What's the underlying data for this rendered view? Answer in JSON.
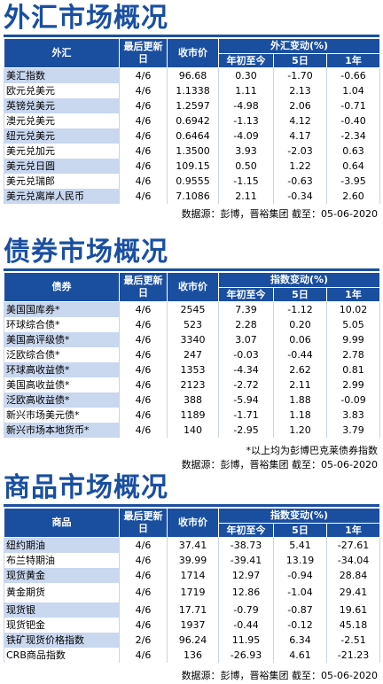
{
  "fx": {
    "title": "外汇市场概况",
    "headers": {
      "name": "外汇",
      "date": "最后更新日",
      "close": "收市价",
      "change_group": "外汇变动(%)",
      "ytd": "年初至今",
      "d5": "5日",
      "y1": "1年"
    },
    "rows": [
      {
        "name": "美汇指数",
        "date": "4/6",
        "close": "96.68",
        "ytd": "0.30",
        "d5": "-1.70",
        "y1": "-0.66"
      },
      {
        "name": "欧元兑美元",
        "date": "4/6",
        "close": "1.1338",
        "ytd": "1.11",
        "d5": "2.13",
        "y1": "1.04"
      },
      {
        "name": "英镑兑美元",
        "date": "4/6",
        "close": "1.2597",
        "ytd": "-4.98",
        "d5": "2.06",
        "y1": "-0.71"
      },
      {
        "name": "澳元兑美元",
        "date": "4/6",
        "close": "0.6942",
        "ytd": "-1.13",
        "d5": "4.12",
        "y1": "-0.40"
      },
      {
        "name": "纽元兑美元",
        "date": "4/6",
        "close": "0.6464",
        "ytd": "-4.09",
        "d5": "4.17",
        "y1": "-2.34"
      },
      {
        "name": "美元兑加元",
        "date": "4/6",
        "close": "1.3500",
        "ytd": "3.93",
        "d5": "-2.03",
        "y1": "0.63"
      },
      {
        "name": "美元兑日圆",
        "date": "4/6",
        "close": "109.15",
        "ytd": "0.50",
        "d5": "1.22",
        "y1": "0.64"
      },
      {
        "name": "美元兑瑞郎",
        "date": "4/6",
        "close": "0.9555",
        "ytd": "-1.15",
        "d5": "-0.63",
        "y1": "-3.95"
      },
      {
        "name": "美元兑离岸人民币",
        "date": "4/6",
        "close": "7.1086",
        "ytd": "2.11",
        "d5": "-0.34",
        "y1": "2.60"
      }
    ],
    "source": "数据源：彭博，晋裕集团 截至：05-06-2020"
  },
  "bond": {
    "title": "债券市场概况",
    "headers": {
      "name": "债券",
      "date": "最后更新日",
      "close": "收市价",
      "change_group": "指数变动(%)",
      "ytd": "年初至今",
      "d5": "5日",
      "y1": "1年"
    },
    "rows": [
      {
        "name": "美国国库券*",
        "date": "4/6",
        "close": "2545",
        "ytd": "7.39",
        "d5": "-1.12",
        "y1": "10.02"
      },
      {
        "name": "环球综合债*",
        "date": "4/6",
        "close": "523",
        "ytd": "2.28",
        "d5": "0.20",
        "y1": "5.05"
      },
      {
        "name": "美国高评级债*",
        "date": "4/6",
        "close": "3340",
        "ytd": "3.07",
        "d5": "0.06",
        "y1": "9.99"
      },
      {
        "name": "泛欧综合债*",
        "date": "4/6",
        "close": "247",
        "ytd": "-0.03",
        "d5": "-0.44",
        "y1": "2.78"
      },
      {
        "name": "环球高收益债*",
        "date": "4/6",
        "close": "1353",
        "ytd": "-4.34",
        "d5": "2.62",
        "y1": "0.81"
      },
      {
        "name": "美国高收益债*",
        "date": "4/6",
        "close": "2123",
        "ytd": "-2.72",
        "d5": "2.11",
        "y1": "2.99"
      },
      {
        "name": "泛欧高收益债*",
        "date": "4/6",
        "close": "388",
        "ytd": "-5.94",
        "d5": "1.88",
        "y1": "-0.09"
      },
      {
        "name": "新兴市场美元债*",
        "date": "4/6",
        "close": "1189",
        "ytd": "-1.71",
        "d5": "1.18",
        "y1": "3.83"
      },
      {
        "name": "新兴市场本地货币*",
        "date": "4/6",
        "close": "140",
        "ytd": "-2.95",
        "d5": "1.20",
        "y1": "3.79"
      }
    ],
    "note": "*以上均为彭博巴克莱债券指数",
    "source": "数据源：彭博，晋裕集团 截至：05-06-2020"
  },
  "commodity": {
    "title": "商品市场概况",
    "headers": {
      "name": "商品",
      "date": "最后更新日",
      "close": "收市价",
      "change_group": "指数变动(%)",
      "ytd": "年初至今",
      "d5": "5日",
      "y1": "1年"
    },
    "rows": [
      {
        "name": "纽约期油",
        "date": "4/6",
        "close": "37.41",
        "ytd": "-38.73",
        "d5": "5.41",
        "y1": "-27.61"
      },
      {
        "name": "布兰特期油",
        "date": "4/6",
        "close": "39.99",
        "ytd": "-39.41",
        "d5": "13.19",
        "y1": "-34.04"
      },
      {
        "name": "现货黄金",
        "date": "4/6",
        "close": "1714",
        "ytd": "12.97",
        "d5": "-0.94",
        "y1": "28.84"
      },
      {
        "name": "黄金期货",
        "date": "4/6",
        "close": "1719",
        "ytd": "12.86",
        "d5": "-1.04",
        "y1": "29.41"
      },
      {
        "name": "现货银",
        "date": "4/6",
        "close": "17.71",
        "ytd": "-0.79",
        "d5": "-0.87",
        "y1": "19.61"
      },
      {
        "name": "现货钯金",
        "date": "4/6",
        "close": "1937",
        "ytd": "-0.44",
        "d5": "-0.12",
        "y1": "45.18"
      },
      {
        "name": "铁矿现货价格指数",
        "date": "2/6",
        "close": "96.24",
        "ytd": "11.95",
        "d5": "6.34",
        "y1": "-2.51"
      },
      {
        "name": "CRB商品指数",
        "date": "4/6",
        "close": "136",
        "ytd": "-26.93",
        "d5": "4.61",
        "y1": "-21.23"
      }
    ],
    "source": "数据源：彭博，晋裕集团 截至：05-06-2020"
  }
}
